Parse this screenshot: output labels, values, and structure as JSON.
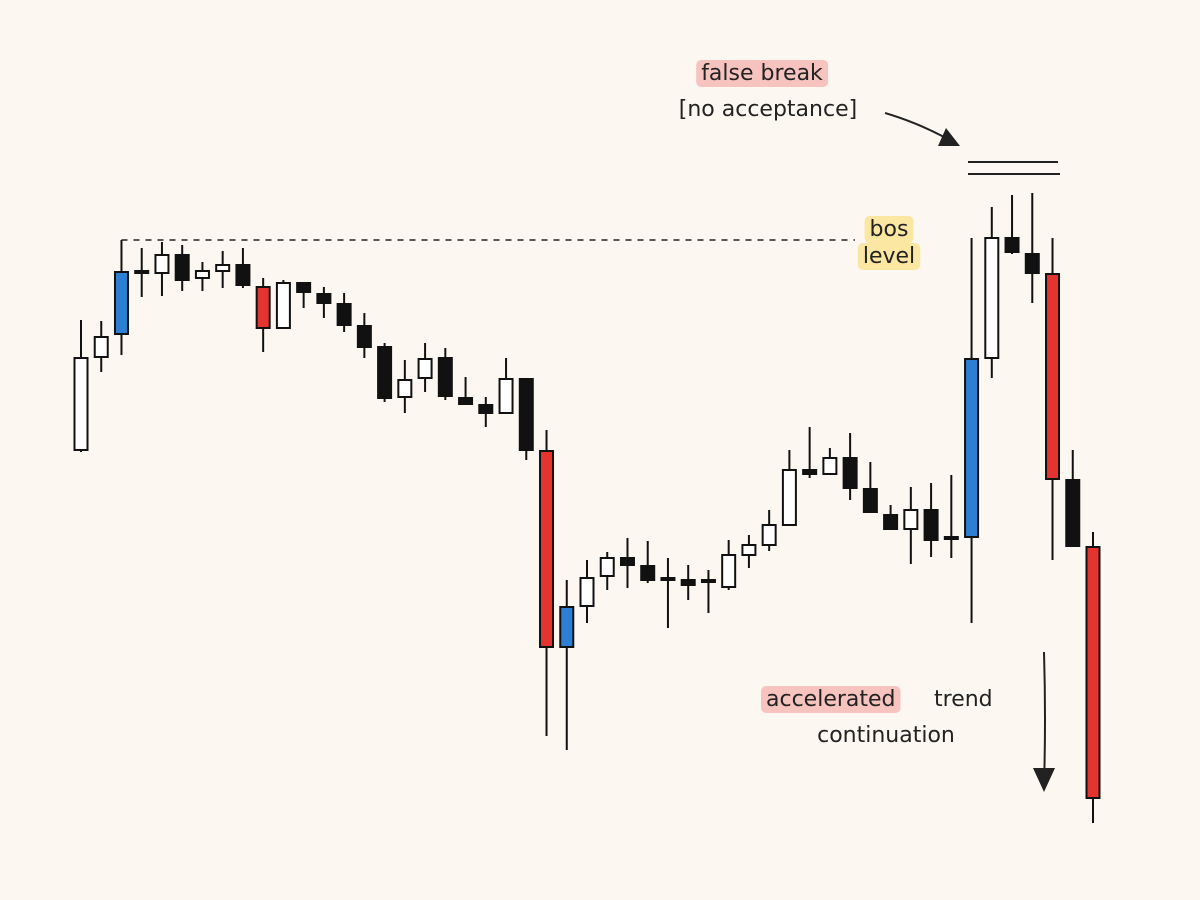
{
  "chart_data": {
    "type": "candlestick",
    "open": [
      450,
      543,
      566,
      629,
      627,
      645,
      622,
      629,
      635,
      613,
      572,
      617,
      606,
      596,
      574,
      553,
      503,
      522,
      542,
      502,
      495,
      487,
      521,
      449,
      253,
      294,
      324,
      342,
      334,
      322,
      320,
      320,
      313,
      345,
      355,
      375,
      430,
      426,
      442,
      411,
      385,
      371,
      390,
      363,
      363,
      542,
      662,
      646,
      626,
      420,
      353
    ],
    "high": [
      580,
      579,
      660,
      652,
      658,
      655,
      638,
      649,
      652,
      622,
      620,
      617,
      613,
      607,
      587,
      557,
      540,
      557,
      552,
      523,
      503,
      542,
      522,
      470,
      320,
      340,
      348,
      362,
      359,
      342,
      335,
      330,
      360,
      365,
      390,
      450,
      473,
      452,
      467,
      438,
      395,
      413,
      417,
      425,
      662,
      693,
      705,
      707,
      662,
      450,
      368
    ],
    "low": [
      448,
      528,
      545,
      603,
      604,
      609,
      609,
      612,
      612,
      548,
      572,
      592,
      582,
      568,
      542,
      498,
      487,
      508,
      500,
      495,
      473,
      487,
      440,
      164,
      150,
      277,
      310,
      312,
      317,
      272,
      300,
      287,
      310,
      332,
      349,
      375,
      422,
      425,
      400,
      388,
      370,
      336,
      343,
      342,
      277,
      522,
      646,
      597,
      340,
      354,
      77
    ],
    "close": [
      542,
      563,
      628,
      627,
      645,
      620,
      629,
      635,
      615,
      572,
      617,
      608,
      597,
      575,
      553,
      502,
      520,
      541,
      504,
      496,
      487,
      521,
      450,
      253,
      293,
      322,
      342,
      335,
      320,
      320,
      315,
      319,
      345,
      355,
      375,
      430,
      426,
      442,
      412,
      388,
      371,
      390,
      360,
      362,
      541,
      662,
      648,
      627,
      421,
      354,
      102
    ],
    "colors": [
      "#ffffff",
      "#ffffff",
      "#2d7fd3",
      "#111111",
      "#ffffff",
      "#111111",
      "#ffffff",
      "#ffffff",
      "#111111",
      "#e3342f",
      "#ffffff",
      "#111111",
      "#111111",
      "#111111",
      "#111111",
      "#111111",
      "#ffffff",
      "#ffffff",
      "#111111",
      "#111111",
      "#111111",
      "#ffffff",
      "#111111",
      "#e3342f",
      "#2d7fd3",
      "#ffffff",
      "#ffffff",
      "#111111",
      "#111111",
      "#111111",
      "#111111",
      "#111111",
      "#ffffff",
      "#ffffff",
      "#ffffff",
      "#ffffff",
      "#111111",
      "#ffffff",
      "#111111",
      "#111111",
      "#111111",
      "#ffffff",
      "#111111",
      "#111111",
      "#2d7fd3",
      "#ffffff",
      "#111111",
      "#111111",
      "#e3342f",
      "#111111",
      "#e3342f"
    ],
    "ylim": [
      0,
      900
    ],
    "annotations": {
      "false_break": "false break",
      "no_acceptance": "[no acceptance]",
      "bos": "bos",
      "level": "level",
      "accelerated": "accelerated",
      "trend": "trend",
      "continuation": "continuation"
    }
  }
}
